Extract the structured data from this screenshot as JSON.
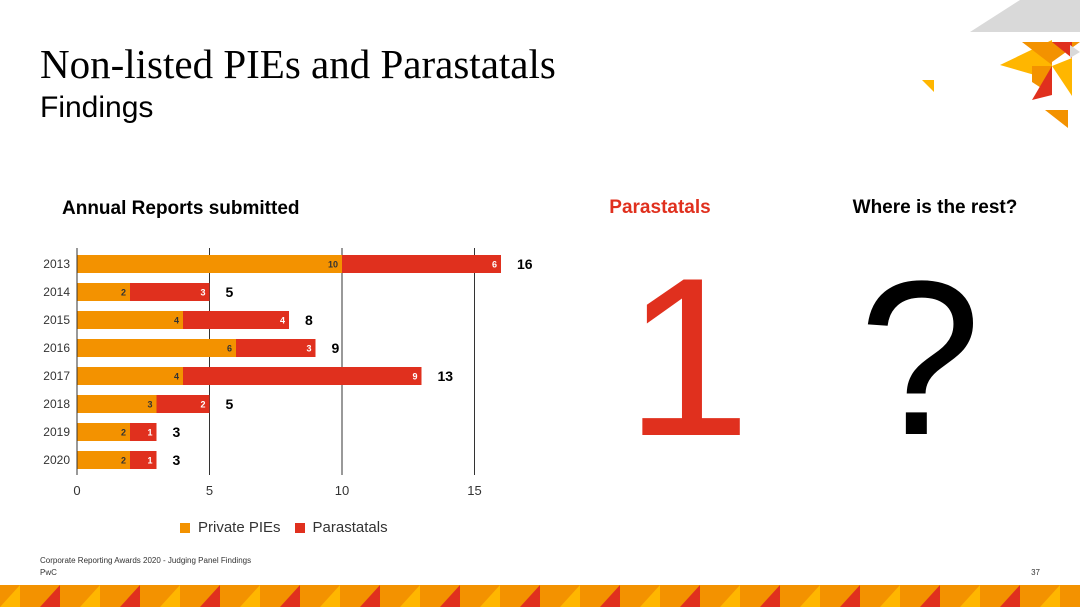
{
  "slide": {
    "title": "Non-listed PIEs and Parastatals",
    "subtitle": "Findings",
    "footer_line1": "Corporate Reporting Awards 2020 - Judging Panel Findings",
    "footer_line2": "PwC",
    "page_number": "37"
  },
  "chart_data": {
    "type": "bar",
    "orientation": "horizontal",
    "stacked": true,
    "title": "Annual Reports submitted",
    "categories": [
      "2013",
      "2014",
      "2015",
      "2016",
      "2017",
      "2018",
      "2019",
      "2020"
    ],
    "series": [
      {
        "name": "Private PIEs",
        "values": [
          10,
          2,
          4,
          6,
          4,
          3,
          2,
          2
        ],
        "color": "#F39200"
      },
      {
        "name": "Parastatals",
        "values": [
          6,
          3,
          4,
          3,
          9,
          2,
          1,
          1
        ],
        "color": "#E0301E"
      }
    ],
    "totals": [
      16,
      5,
      8,
      9,
      13,
      5,
      3,
      3
    ],
    "xlim": [
      0,
      16
    ],
    "xticks": [
      0,
      5,
      10,
      15
    ],
    "grid": true,
    "legend": "bottom"
  },
  "parastatals_panel": {
    "heading": "Parastatals",
    "value": "1",
    "color": "#E0301E"
  },
  "rest_panel": {
    "heading": "Where is the rest?",
    "value": "?"
  },
  "colors": {
    "orange": "#F39200",
    "red": "#E0301E",
    "yellow": "#FFB600",
    "gray": "#D9D9D9"
  }
}
